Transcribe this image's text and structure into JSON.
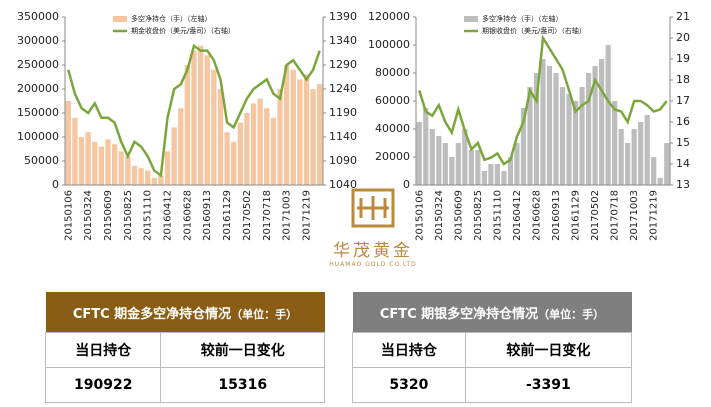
{
  "chart_data": [
    {
      "type": "bar",
      "color": "#f5c6a0",
      "categories": [
        "20150106",
        null,
        null,
        "20150324",
        null,
        null,
        "20150609",
        null,
        null,
        "20150825",
        null,
        null,
        "20151110",
        null,
        null,
        "20160412",
        null,
        null,
        "20160628",
        null,
        null,
        "20160913",
        null,
        null,
        "20161129",
        null,
        null,
        "20170502",
        null,
        null,
        "20170718",
        null,
        null,
        "20171003",
        null,
        null,
        "20171219",
        null,
        null
      ],
      "ylim": [
        0,
        350000
      ],
      "yticks": [
        0,
        50000,
        100000,
        150000,
        200000,
        250000,
        300000,
        350000
      ],
      "y2lim": [
        1040,
        1390
      ],
      "y2ticks": [
        1040,
        1090,
        1140,
        1190,
        1240,
        1290,
        1340,
        1390
      ],
      "series": [
        {
          "name": "多空净持仓（手）（左轴）",
          "type": "bar",
          "color": "#f5c6a0",
          "values": [
            175000,
            140000,
            100000,
            110000,
            90000,
            80000,
            95000,
            85000,
            70000,
            60000,
            40000,
            35000,
            30000,
            15000,
            20000,
            70000,
            120000,
            160000,
            250000,
            280000,
            290000,
            270000,
            240000,
            200000,
            110000,
            90000,
            130000,
            150000,
            170000,
            180000,
            160000,
            140000,
            200000,
            250000,
            240000,
            220000,
            230000,
            200000,
            210000
          ]
        },
        {
          "name": "期金收盘价（美元/盎司）（右轴）",
          "type": "line",
          "axis": "y2",
          "color": "#7aa63c",
          "values": [
            1280,
            1230,
            1200,
            1190,
            1210,
            1180,
            1180,
            1170,
            1130,
            1100,
            1130,
            1120,
            1100,
            1070,
            1060,
            1180,
            1240,
            1250,
            1280,
            1330,
            1320,
            1320,
            1300,
            1260,
            1170,
            1160,
            1190,
            1220,
            1240,
            1250,
            1260,
            1230,
            1220,
            1290,
            1300,
            1280,
            1260,
            1280,
            1320
          ]
        }
      ]
    },
    {
      "type": "bar",
      "color": "#bdbdbd",
      "categories": [
        "20150106",
        null,
        null,
        "20150324",
        null,
        null,
        "20150609",
        null,
        null,
        "20150825",
        null,
        null,
        "20151110",
        null,
        null,
        "20160412",
        null,
        null,
        "20160628",
        null,
        null,
        "20160913",
        null,
        null,
        "20161129",
        null,
        null,
        "20170502",
        null,
        null,
        "20170718",
        null,
        null,
        "20171003",
        null,
        null,
        "20171219",
        null,
        null
      ],
      "ylim": [
        0,
        120000
      ],
      "yticks": [
        0,
        20000,
        40000,
        60000,
        80000,
        100000,
        120000
      ],
      "y2lim": [
        13,
        21
      ],
      "y2ticks": [
        13,
        14,
        15,
        16,
        17,
        18,
        19,
        20,
        21
      ],
      "series": [
        {
          "name": "多空净持仓（手）（左轴）",
          "type": "bar",
          "color": "#bdbdbd",
          "values": [
            45000,
            55000,
            40000,
            35000,
            30000,
            20000,
            30000,
            40000,
            25000,
            25000,
            10000,
            15000,
            15000,
            10000,
            20000,
            30000,
            55000,
            70000,
            80000,
            90000,
            85000,
            80000,
            70000,
            65000,
            60000,
            70000,
            80000,
            85000,
            90000,
            100000,
            60000,
            40000,
            30000,
            40000,
            45000,
            50000,
            20000,
            5000,
            30000
          ]
        },
        {
          "name": "期银收盘价（美元/盎司）（右轴）",
          "type": "line",
          "axis": "y2",
          "color": "#7aa63c",
          "values": [
            17.5,
            16.5,
            16.3,
            16.8,
            16.0,
            15.5,
            16.6,
            15.6,
            14.7,
            15.0,
            14.2,
            14.3,
            14.5,
            14.0,
            14.2,
            15.3,
            16.0,
            17.5,
            17.0,
            20.0,
            19.5,
            19.0,
            18.5,
            17.5,
            16.5,
            16.8,
            17.0,
            18.0,
            17.5,
            17.0,
            16.6,
            16.5,
            16.0,
            17.0,
            17.0,
            16.8,
            16.5,
            16.6,
            17.0
          ]
        }
      ]
    }
  ],
  "logo": {
    "name": "华茂黄金",
    "english": "HUAMAO GOLD CO.LTD"
  },
  "tables": [
    {
      "title": "CFTC 期金多空净持仓情况",
      "unit": "（单位：手）",
      "headers": [
        "当日持仓",
        "较前一日变化"
      ],
      "row": [
        190922,
        15316
      ]
    },
    {
      "title": "CFTC 期银多空净持仓情况",
      "unit": "（单位：手）",
      "headers": [
        "当日持仓",
        "较前一日变化"
      ],
      "row": [
        5320,
        -3391
      ]
    }
  ]
}
